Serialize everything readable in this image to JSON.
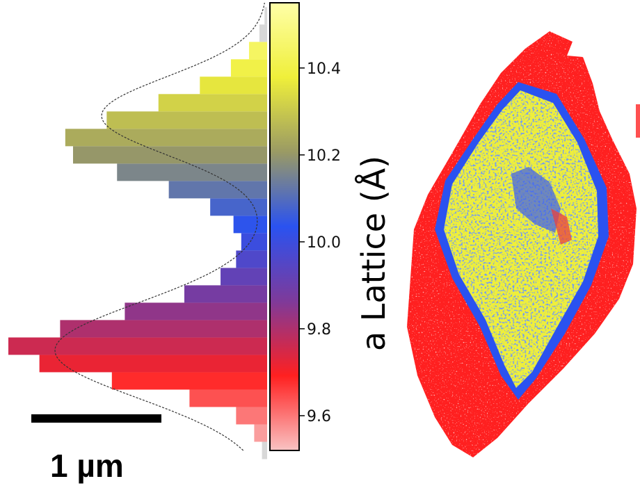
{
  "chart_data": {
    "type": "area",
    "title": "",
    "colorbar": {
      "label": "a Lattice (Å)",
      "range": [
        9.52,
        10.55
      ],
      "ticks": [
        9.6,
        9.8,
        10.0,
        10.2,
        10.4
      ],
      "tick_labels": [
        "9.6",
        "9.8",
        "10.0",
        "10.2",
        "10.4"
      ],
      "colors": [
        "#f9c3c3",
        "#ff2020",
        "#7e3a9a",
        "#2a52f0",
        "#9a9a64",
        "#efef3a",
        "#ffffa8"
      ]
    },
    "histogram": {
      "orientation": "horizontal",
      "x": [
        9.52,
        9.56,
        9.6,
        9.64,
        9.68,
        9.72,
        9.76,
        9.8,
        9.84,
        9.88,
        9.92,
        9.96,
        10.0,
        10.04,
        10.08,
        10.12,
        10.16,
        10.2,
        10.24,
        10.28,
        10.32,
        10.36,
        10.4,
        10.44,
        10.48,
        10.52
      ],
      "counts": [
        0.02,
        0.05,
        0.12,
        0.3,
        0.6,
        0.88,
        1.0,
        0.8,
        0.55,
        0.32,
        0.18,
        0.12,
        0.1,
        0.13,
        0.22,
        0.38,
        0.58,
        0.75,
        0.78,
        0.62,
        0.42,
        0.26,
        0.14,
        0.07,
        0.03,
        0.01
      ],
      "fit_peaks": [
        {
          "center": 9.75,
          "width": 0.11,
          "height": 1.0
        },
        {
          "center": 10.29,
          "width": 0.09,
          "height": 0.78
        }
      ]
    },
    "map": {
      "regions": [
        "core",
        "rim"
      ],
      "core_color": "#efef3a",
      "rim_color": "#ff2020",
      "boundary_color": "#2a52f0"
    }
  },
  "scalebar": {
    "label": "1 µm"
  }
}
